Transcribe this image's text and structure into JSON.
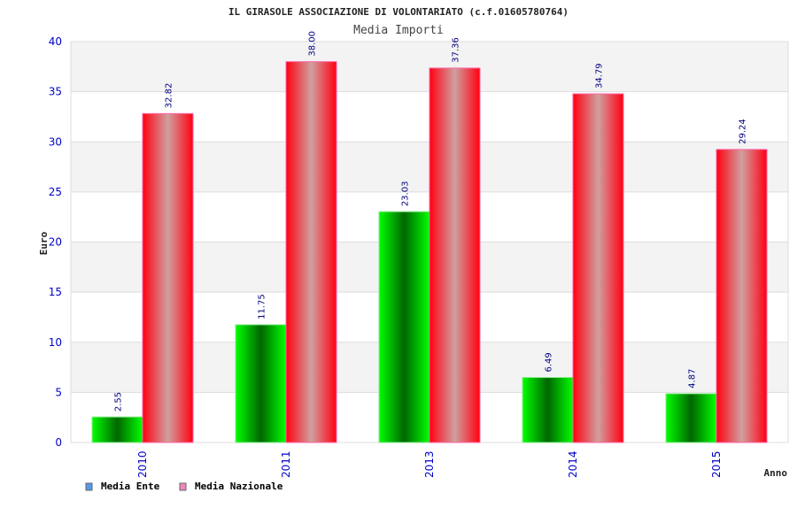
{
  "chart_data": {
    "type": "bar",
    "title": "IL GIRASOLE ASSOCIAZIONE DI VOLONTARIATO (c.f.01605780764)",
    "subtitle": "Media Importi",
    "xlabel": "Anno",
    "ylabel": "Euro",
    "ylim": [
      0,
      40
    ],
    "yticks": [
      "0",
      "5",
      "10",
      "15",
      "20",
      "25",
      "30",
      "35",
      "40"
    ],
    "categories": [
      "2010",
      "2011",
      "2013",
      "2014",
      "2015"
    ],
    "series": [
      {
        "name": "Media Ente",
        "values": [
          2.55,
          11.75,
          23.03,
          6.49,
          4.87
        ],
        "labels": [
          "2.55",
          "11.75",
          "23.03",
          "6.49",
          "4.87"
        ],
        "color": "#00dd00",
        "legend_color": "#5599ee"
      },
      {
        "name": "Media Nazionale",
        "values": [
          32.82,
          38.0,
          37.36,
          34.79,
          29.24
        ],
        "labels": [
          "32.82",
          "38.00",
          "37.36",
          "34.79",
          "29.24"
        ],
        "color": "#ff0022",
        "legend_color": "#ee88bb"
      }
    ],
    "grid": true,
    "legend_position": "bottom-left"
  }
}
